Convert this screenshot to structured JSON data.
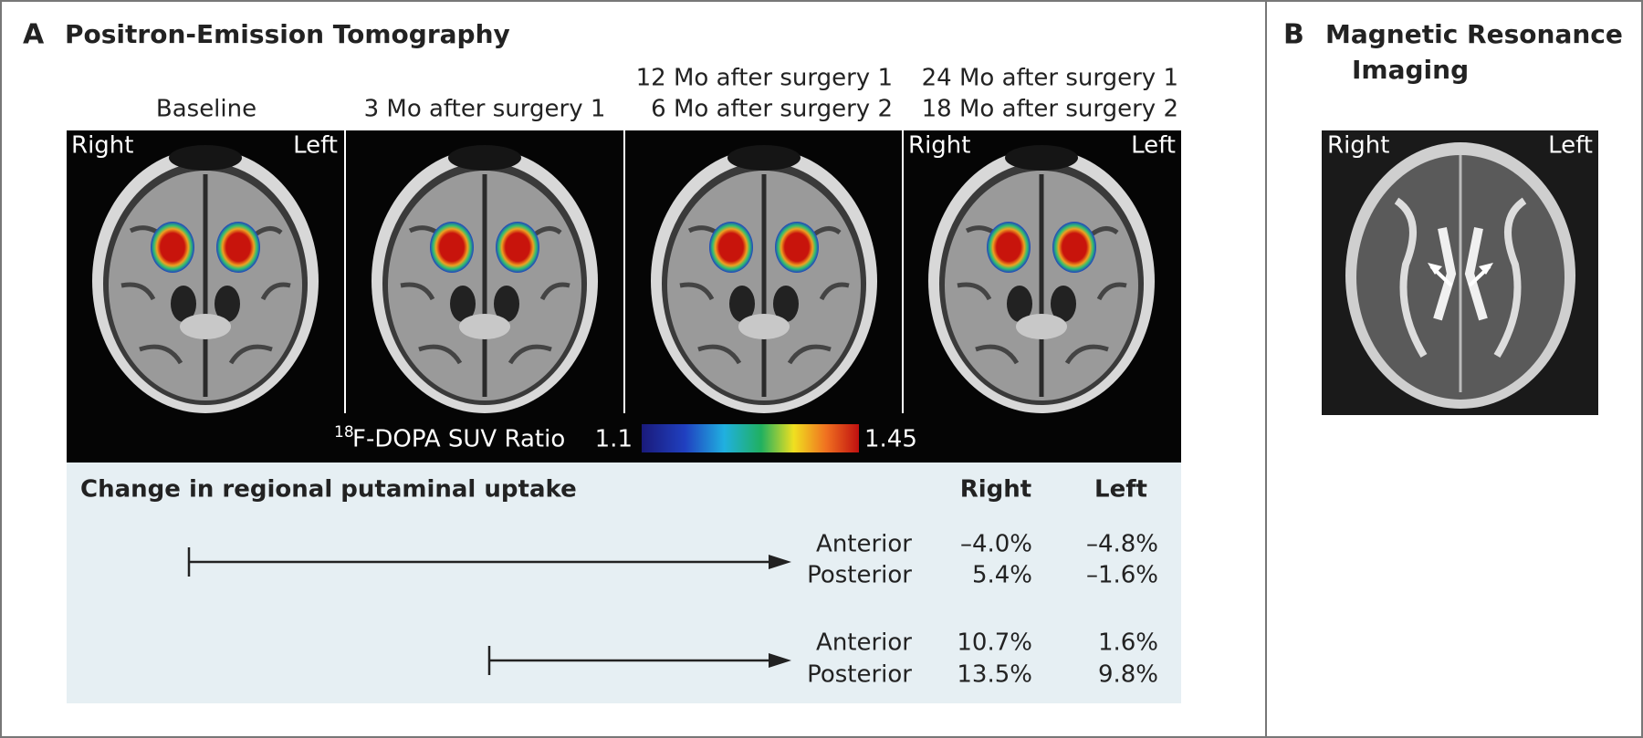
{
  "panel_a": {
    "label": "A",
    "title": "Positron-Emission Tomography",
    "columns": [
      {
        "header": [
          "Baseline"
        ]
      },
      {
        "header": [
          "3 Mo after surgery 1"
        ]
      },
      {
        "header": [
          "12 Mo after surgery 1",
          "6 Mo after surgery 2"
        ]
      },
      {
        "header": [
          "24 Mo after surgery 1",
          "18 Mo after surgery 2"
        ]
      }
    ],
    "orientation": {
      "right": "Right",
      "left": "Left"
    },
    "colorbar": {
      "superscript": "18",
      "label": "F-DOPA SUV Ratio",
      "min": 1.1,
      "max": 1.45
    },
    "table": {
      "title": "Change in regional putaminal uptake",
      "columns": [
        "Right",
        "Left"
      ],
      "groups": [
        {
          "rows": [
            {
              "region": "Anterior",
              "right": "–4.0%",
              "left": "–4.8%"
            },
            {
              "region": "Posterior",
              "right": "5.4%",
              "left": "–1.6%"
            }
          ]
        },
        {
          "rows": [
            {
              "region": "Anterior",
              "right": "10.7%",
              "left": "1.6%"
            },
            {
              "region": "Posterior",
              "right": "13.5%",
              "left": "9.8%"
            }
          ]
        }
      ]
    }
  },
  "panel_b": {
    "label": "B",
    "title": [
      "Magnetic Resonance",
      "Imaging"
    ],
    "orientation": {
      "right": "Right",
      "left": "Left"
    }
  }
}
